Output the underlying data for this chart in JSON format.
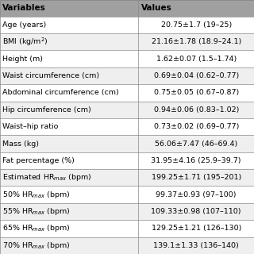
{
  "headers": [
    "Variables",
    "Values"
  ],
  "rows": [
    [
      "Age (years)",
      "20.75±1.7 (19–25)"
    ],
    [
      "BMI (kg/m$^2$)",
      "21.16±1.78 (18.9–24.1)"
    ],
    [
      "Height (m)",
      "1.62±0.07 (1.5–1.74)"
    ],
    [
      "Waist circumference (cm)",
      "0.69±0.04 (0.62–0.77)"
    ],
    [
      "Abdominal circumference (cm)",
      "0.75±0.05 (0.67–0.87)"
    ],
    [
      "Hip circumference (cm)",
      "0.94±0.06 (0.83–1.02)"
    ],
    [
      "Waist–hip ratio",
      "0.73±0.02 (0.69–0.77)"
    ],
    [
      "Mass (kg)",
      "56.06±7.47 (46–69.4)"
    ],
    [
      "Fat percentage (%)",
      "31.95±4.16 (25.9–39.7)"
    ],
    [
      "Estimated HR$_{max}$ (bpm)",
      "199.25±1.71 (195–201)"
    ],
    [
      "50% HR$_{max}$ (bpm)",
      "99.37±0.93 (97–100)"
    ],
    [
      "55% HR$_{max}$ (bpm)",
      "109.33±0.98 (107–110)"
    ],
    [
      "65% HR$_{max}$ (bpm)",
      "129.25±1.21 (126–130)"
    ],
    [
      "70% HR$_{max}$ (bpm)",
      "139.1±1.33 (136–140)"
    ]
  ],
  "header_bg": "#a0a0a0",
  "row_bg_even": "#ffffff",
  "row_bg_odd": "#efefef",
  "header_text_color": "#000000",
  "row_text_color": "#000000",
  "col_split": 0.545,
  "fig_width": 3.2,
  "fig_height": 3.2,
  "dpi": 100,
  "header_fontsize": 7.5,
  "row_fontsize": 6.8,
  "line_color": "#888888",
  "line_width": 0.5
}
